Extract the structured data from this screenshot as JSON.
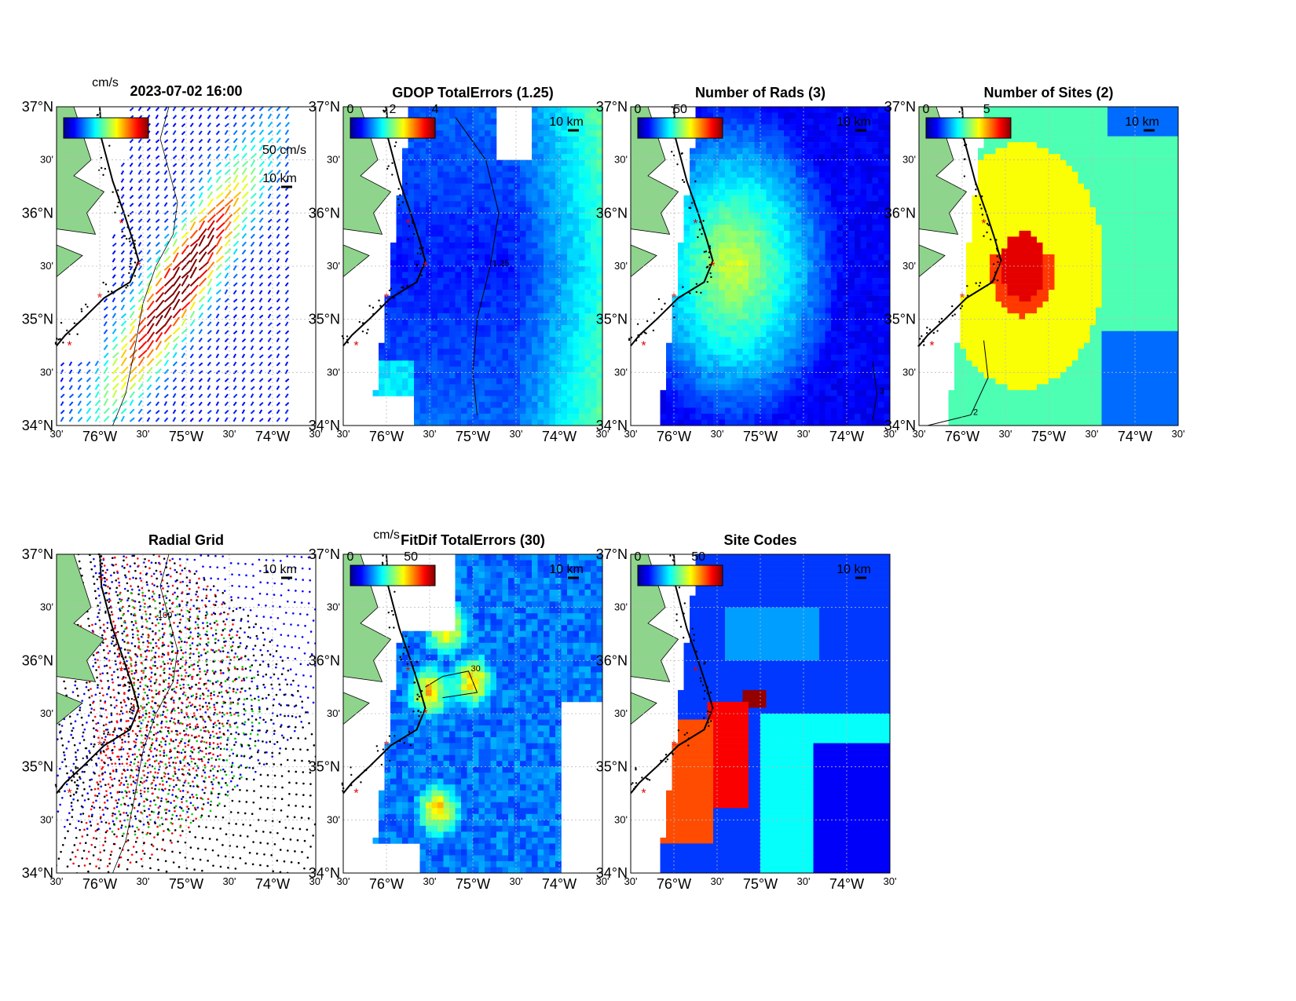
{
  "figure": {
    "timestamp": "2023-07-02 16:00",
    "lat_labels": [
      "37°N",
      "30'",
      "36°N",
      "30'",
      "35°N",
      "30'",
      "34°N"
    ],
    "lon_labels": [
      "30'",
      "76°W",
      "30'",
      "75°W",
      "30'",
      "74°W",
      "30'"
    ],
    "scale_bar_label": "10 km"
  },
  "chart_data": [
    {
      "id": "totals",
      "type": "vector-map",
      "title": "2023-07-02 16:00",
      "colorbar": {
        "label": "cm/s",
        "ticks": [],
        "colormap": "jet"
      },
      "reference_vector": "50 cm/s",
      "lat_range": [
        34,
        37
      ],
      "lon_range": [
        -76.5,
        -73.5
      ],
      "max_speed_cms": 100
    },
    {
      "id": "gdop",
      "type": "heatmap",
      "title": "GDOP TotalErrors (1.25)",
      "colorbar": {
        "ticks": [
          "0",
          "2",
          "4"
        ],
        "range": [
          0,
          4
        ],
        "colormap": "jet"
      },
      "contour_level": "1.25",
      "lat_range": [
        34,
        37
      ],
      "lon_range": [
        -76.5,
        -73.5
      ]
    },
    {
      "id": "nrads",
      "type": "heatmap",
      "title": "Number of Rads (3)",
      "colorbar": {
        "ticks": [
          "0",
          "50"
        ],
        "range": [
          0,
          100
        ],
        "colormap": "jet"
      },
      "contour_level": "3",
      "lat_range": [
        34,
        37
      ],
      "lon_range": [
        -76.5,
        -73.5
      ]
    },
    {
      "id": "nsites",
      "type": "heatmap",
      "title": "Number of Sites (2)",
      "colorbar": {
        "ticks": [
          "0",
          "5"
        ],
        "range": [
          0,
          7
        ],
        "colormap": "jet"
      },
      "contour_level": "2",
      "lat_range": [
        34,
        37
      ],
      "lon_range": [
        -76.5,
        -73.5
      ]
    },
    {
      "id": "radgrid",
      "type": "scatter",
      "title": "Radial Grid",
      "series": [
        {
          "color": "#0000ff",
          "site": [
            -76.03,
            36.75
          ]
        },
        {
          "color": "#ff0000",
          "site": [
            -75.75,
            35.9
          ]
        },
        {
          "color": "#00cc00",
          "site": [
            -75.55,
            35.5
          ]
        },
        {
          "color": "#ff0000",
          "site": [
            -76.0,
            35.2
          ]
        },
        {
          "color": "#000000",
          "site": [
            -76.35,
            34.8
          ]
        }
      ],
      "isobath_label": "100",
      "lat_range": [
        34,
        37
      ],
      "lon_range": [
        -76.5,
        -73.5
      ]
    },
    {
      "id": "fitdif",
      "type": "heatmap",
      "title": "FitDif TotalErrors (30)",
      "colorbar": {
        "label": "cm/s",
        "ticks": [
          "0",
          "50"
        ],
        "range": [
          0,
          70
        ],
        "colormap": "jet"
      },
      "contour_level": "30",
      "lat_range": [
        34,
        37
      ],
      "lon_range": [
        -76.5,
        -73.5
      ]
    },
    {
      "id": "sitecodes",
      "type": "heatmap",
      "title": "Site Codes",
      "colorbar": {
        "ticks": [
          "0",
          "50"
        ],
        "range": [
          0,
          70
        ],
        "colormap": "jet"
      },
      "lat_range": [
        34,
        37
      ],
      "lon_range": [
        -76.5,
        -73.5
      ]
    }
  ],
  "colors": {
    "land": "#8fd48c",
    "coast": "#000000",
    "site_marker": "#e00000",
    "grid": "#bbbbbb"
  }
}
